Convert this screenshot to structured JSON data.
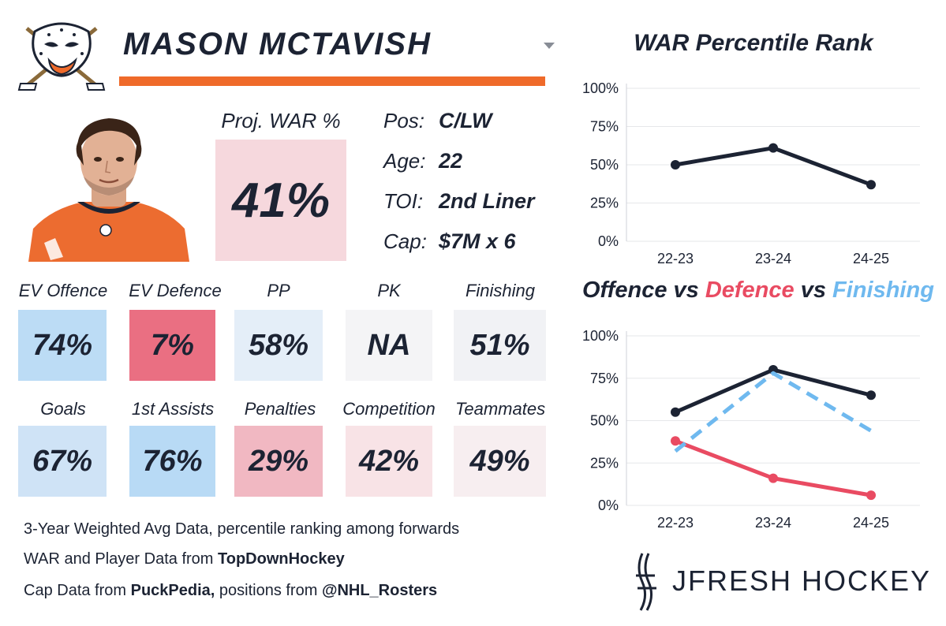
{
  "player": {
    "name": "MASON MCTAVISH",
    "proj_war_label": "Proj. WAR %",
    "proj_war_value": "41%"
  },
  "info": [
    {
      "label": "Pos:",
      "value": "C/LW"
    },
    {
      "label": "Age:",
      "value": "22"
    },
    {
      "label": "TOI:",
      "value": "2nd Liner"
    },
    {
      "label": "Cap:",
      "value": "$7M x 6"
    }
  ],
  "stats_row1": [
    {
      "label": "EV Offence",
      "value": "74%",
      "color": "#bcdcf5"
    },
    {
      "label": "EV Defence",
      "value": "7%",
      "color": "#ea6f82"
    },
    {
      "label": "PP",
      "value": "58%",
      "color": "#e4eef8"
    },
    {
      "label": "PK",
      "value": "NA",
      "color": "#f4f4f6"
    },
    {
      "label": "Finishing",
      "value": "51%",
      "color": "#f1f2f5"
    }
  ],
  "stats_row2": [
    {
      "label": "Goals",
      "value": "67%",
      "color": "#cfe3f6"
    },
    {
      "label": "1st Assists",
      "value": "76%",
      "color": "#b8daf5"
    },
    {
      "label": "Penalties",
      "value": "29%",
      "color": "#f1b8c2"
    },
    {
      "label": "Competition",
      "value": "42%",
      "color": "#f8e3e6"
    },
    {
      "label": "Teammates",
      "value": "49%",
      "color": "#f7eef0"
    }
  ],
  "notes": {
    "line1": "3-Year Weighted Avg Data, percentile ranking among forwards",
    "line2_prefix": "WAR and Player Data from ",
    "line2_bold": "TopDownHockey",
    "line3_prefix": "Cap Data from ",
    "line3_bold": "PuckPedia,",
    "line3_middle": " positions from ",
    "line3_bold2": "@NHL_Rosters"
  },
  "chart_titles": {
    "war": "WAR Percentile Rank",
    "comp_offence": "Offence",
    "comp_vs1": " vs ",
    "comp_defence": "Defence",
    "comp_vs2": " vs ",
    "comp_finishing": "Finishing"
  },
  "brand": {
    "text": "JFRESH HOCKEY"
  },
  "colors": {
    "navy": "#1c2333",
    "defence": "#e94b62",
    "finishing": "#6fb9ef",
    "orange": "#ef6a2a"
  },
  "chart_data": [
    {
      "type": "line",
      "title": "WAR Percentile Rank",
      "categories": [
        "22-23",
        "23-24",
        "24-25"
      ],
      "series": [
        {
          "name": "WAR",
          "values": [
            50,
            61,
            37
          ],
          "color": "#1c2333",
          "dash": false
        }
      ],
      "ylim": [
        0,
        100
      ],
      "yticks": [
        0,
        25,
        50,
        75,
        100
      ],
      "ytick_labels": [
        "0%",
        "25%",
        "50%",
        "75%",
        "100%"
      ],
      "grid": true
    },
    {
      "type": "line",
      "title": "Offence vs Defence vs Finishing",
      "categories": [
        "22-23",
        "23-24",
        "24-25"
      ],
      "series": [
        {
          "name": "Offence",
          "values": [
            55,
            80,
            65
          ],
          "color": "#1c2333",
          "dash": false
        },
        {
          "name": "Defence",
          "values": [
            38,
            16,
            6
          ],
          "color": "#e94b62",
          "dash": false
        },
        {
          "name": "Finishing",
          "values": [
            32,
            78,
            44
          ],
          "color": "#6fb9ef",
          "dash": true
        }
      ],
      "ylim": [
        0,
        100
      ],
      "yticks": [
        0,
        25,
        50,
        75,
        100
      ],
      "ytick_labels": [
        "0%",
        "25%",
        "50%",
        "75%",
        "100%"
      ],
      "grid": true
    }
  ]
}
